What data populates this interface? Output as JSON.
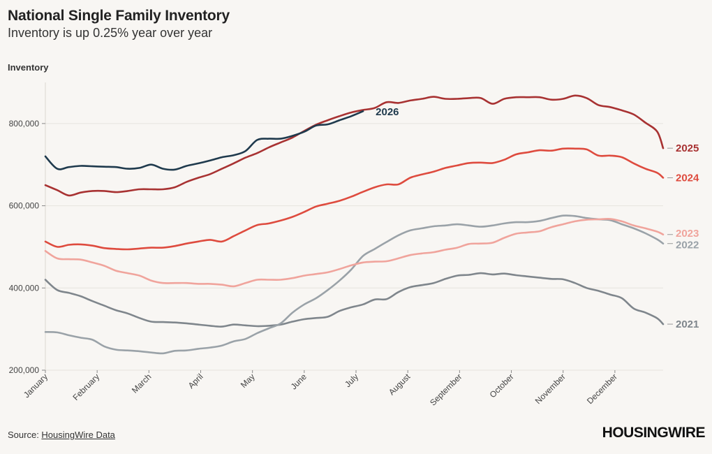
{
  "header": {
    "title": "National Single Family Inventory",
    "subtitle": "Inventory is up 0.25% year over year"
  },
  "footer": {
    "source_prefix": "Source: ",
    "source_link": "HousingWire Data",
    "logo": "HOUSINGWIRE"
  },
  "colors": {
    "background": "#f8f6f3",
    "grid": "#e6e3de",
    "2021": "#7f868c",
    "2022": "#9aa2a8",
    "2023": "#f0a49c",
    "2024": "#de4b3e",
    "2025": "#a83232",
    "2026": "#1f3a4d"
  },
  "chart_data": {
    "type": "line",
    "title": "National Single Family Inventory",
    "subtitle": "Inventory is up 0.25% year over year",
    "ylabel": "Inventory",
    "xlabel": "",
    "x_unit": "week of year",
    "xlim": [
      1,
      52
    ],
    "ylim": [
      200000,
      900000
    ],
    "yticks": [
      200000,
      400000,
      600000,
      800000
    ],
    "ytick_labels": [
      "200,000",
      "400,000",
      "600,000",
      "800,000"
    ],
    "xticks": [
      1,
      5.4,
      9.8,
      14.2,
      18.6,
      23,
      27.4,
      31.8,
      36.2,
      40.6,
      45,
      49.4
    ],
    "xtick_labels": [
      "January",
      "February",
      "March",
      "April",
      "May",
      "June",
      "July",
      "August",
      "September",
      "October",
      "November",
      "December"
    ],
    "grid": true,
    "legend": "end-of-line labels",
    "series": [
      {
        "name": "2021",
        "color_key": "2021",
        "values": [
          [
            1,
            420000
          ],
          [
            2,
            395000
          ],
          [
            3,
            388000
          ],
          [
            4,
            380000
          ],
          [
            5,
            368000
          ],
          [
            6,
            357000
          ],
          [
            7,
            346000
          ],
          [
            8,
            338000
          ],
          [
            9,
            327000
          ],
          [
            10,
            318000
          ],
          [
            11,
            317000
          ],
          [
            12,
            316000
          ],
          [
            13,
            314000
          ],
          [
            14,
            311000
          ],
          [
            15,
            308000
          ],
          [
            16,
            306000
          ],
          [
            17,
            311000
          ],
          [
            18,
            309000
          ],
          [
            19,
            307000
          ],
          [
            20,
            308000
          ],
          [
            21,
            311000
          ],
          [
            22,
            318000
          ],
          [
            23,
            324000
          ],
          [
            24,
            327000
          ],
          [
            25,
            330000
          ],
          [
            26,
            344000
          ],
          [
            27,
            353000
          ],
          [
            28,
            360000
          ],
          [
            29,
            372000
          ],
          [
            30,
            373000
          ],
          [
            31,
            390000
          ],
          [
            32,
            402000
          ],
          [
            33,
            407000
          ],
          [
            34,
            412000
          ],
          [
            35,
            422000
          ],
          [
            36,
            430000
          ],
          [
            37,
            432000
          ],
          [
            38,
            436000
          ],
          [
            39,
            433000
          ],
          [
            40,
            435000
          ],
          [
            41,
            431000
          ],
          [
            42,
            428000
          ],
          [
            43,
            425000
          ],
          [
            44,
            422000
          ],
          [
            45,
            421000
          ],
          [
            46,
            412000
          ],
          [
            47,
            400000
          ],
          [
            48,
            393000
          ],
          [
            49,
            384000
          ],
          [
            50,
            375000
          ],
          [
            51,
            350000
          ],
          [
            52,
            340000
          ],
          [
            53,
            326000
          ],
          [
            53.5,
            312000
          ]
        ]
      },
      {
        "name": "2022",
        "color_key": "2022",
        "values": [
          [
            1,
            293000
          ],
          [
            2,
            292000
          ],
          [
            3,
            285000
          ],
          [
            4,
            279000
          ],
          [
            5,
            274000
          ],
          [
            6,
            258000
          ],
          [
            7,
            250000
          ],
          [
            8,
            248000
          ],
          [
            9,
            246000
          ],
          [
            10,
            243000
          ],
          [
            11,
            241000
          ],
          [
            12,
            247000
          ],
          [
            13,
            248000
          ],
          [
            14,
            252000
          ],
          [
            15,
            255000
          ],
          [
            16,
            260000
          ],
          [
            17,
            270000
          ],
          [
            18,
            276000
          ],
          [
            19,
            290000
          ],
          [
            20,
            302000
          ],
          [
            21,
            314000
          ],
          [
            22,
            340000
          ],
          [
            23,
            360000
          ],
          [
            24,
            375000
          ],
          [
            25,
            395000
          ],
          [
            26,
            418000
          ],
          [
            27,
            445000
          ],
          [
            28,
            478000
          ],
          [
            29,
            495000
          ],
          [
            30,
            512000
          ],
          [
            31,
            528000
          ],
          [
            32,
            540000
          ],
          [
            33,
            545000
          ],
          [
            34,
            550000
          ],
          [
            35,
            552000
          ],
          [
            36,
            555000
          ],
          [
            37,
            552000
          ],
          [
            38,
            549000
          ],
          [
            39,
            552000
          ],
          [
            40,
            557000
          ],
          [
            41,
            560000
          ],
          [
            42,
            560000
          ],
          [
            43,
            563000
          ],
          [
            44,
            570000
          ],
          [
            45,
            576000
          ],
          [
            46,
            575000
          ],
          [
            47,
            570000
          ],
          [
            48,
            567000
          ],
          [
            49,
            565000
          ],
          [
            50,
            555000
          ],
          [
            51,
            545000
          ],
          [
            52,
            533000
          ],
          [
            53,
            518000
          ],
          [
            53.5,
            508000
          ]
        ]
      },
      {
        "name": "2023",
        "color_key": "2023",
        "values": [
          [
            1,
            490000
          ],
          [
            2,
            472000
          ],
          [
            3,
            470000
          ],
          [
            4,
            469000
          ],
          [
            5,
            462000
          ],
          [
            6,
            454000
          ],
          [
            7,
            442000
          ],
          [
            8,
            436000
          ],
          [
            9,
            430000
          ],
          [
            10,
            418000
          ],
          [
            11,
            412000
          ],
          [
            12,
            412000
          ],
          [
            13,
            412000
          ],
          [
            14,
            410000
          ],
          [
            15,
            410000
          ],
          [
            16,
            408000
          ],
          [
            17,
            404000
          ],
          [
            18,
            412000
          ],
          [
            19,
            420000
          ],
          [
            20,
            420000
          ],
          [
            21,
            420000
          ],
          [
            22,
            424000
          ],
          [
            23,
            430000
          ],
          [
            24,
            434000
          ],
          [
            25,
            438000
          ],
          [
            26,
            446000
          ],
          [
            27,
            455000
          ],
          [
            28,
            462000
          ],
          [
            29,
            464000
          ],
          [
            30,
            465000
          ],
          [
            31,
            472000
          ],
          [
            32,
            480000
          ],
          [
            33,
            484000
          ],
          [
            34,
            487000
          ],
          [
            35,
            493000
          ],
          [
            36,
            498000
          ],
          [
            37,
            507000
          ],
          [
            38,
            508000
          ],
          [
            39,
            510000
          ],
          [
            40,
            522000
          ],
          [
            41,
            532000
          ],
          [
            42,
            535000
          ],
          [
            43,
            538000
          ],
          [
            44,
            548000
          ],
          [
            45,
            555000
          ],
          [
            46,
            562000
          ],
          [
            47,
            566000
          ],
          [
            48,
            567000
          ],
          [
            49,
            568000
          ],
          [
            50,
            562000
          ],
          [
            51,
            552000
          ],
          [
            52,
            545000
          ],
          [
            53,
            537000
          ],
          [
            53.5,
            530000
          ]
        ]
      },
      {
        "name": "2024",
        "color_key": "2024",
        "values": [
          [
            1,
            513000
          ],
          [
            2,
            500000
          ],
          [
            3,
            505000
          ],
          [
            4,
            506000
          ],
          [
            5,
            503000
          ],
          [
            6,
            497000
          ],
          [
            7,
            495000
          ],
          [
            8,
            494000
          ],
          [
            9,
            496000
          ],
          [
            10,
            498000
          ],
          [
            11,
            498000
          ],
          [
            12,
            502000
          ],
          [
            13,
            508000
          ],
          [
            14,
            513000
          ],
          [
            15,
            517000
          ],
          [
            16,
            513000
          ],
          [
            17,
            526000
          ],
          [
            18,
            540000
          ],
          [
            19,
            553000
          ],
          [
            20,
            557000
          ],
          [
            21,
            564000
          ],
          [
            22,
            573000
          ],
          [
            23,
            585000
          ],
          [
            24,
            598000
          ],
          [
            25,
            605000
          ],
          [
            26,
            612000
          ],
          [
            27,
            622000
          ],
          [
            28,
            634000
          ],
          [
            29,
            645000
          ],
          [
            30,
            652000
          ],
          [
            31,
            652000
          ],
          [
            32,
            668000
          ],
          [
            33,
            676000
          ],
          [
            34,
            683000
          ],
          [
            35,
            692000
          ],
          [
            36,
            698000
          ],
          [
            37,
            704000
          ],
          [
            38,
            705000
          ],
          [
            39,
            704000
          ],
          [
            40,
            712000
          ],
          [
            41,
            725000
          ],
          [
            42,
            730000
          ],
          [
            43,
            735000
          ],
          [
            44,
            734000
          ],
          [
            45,
            739000
          ],
          [
            46,
            739000
          ],
          [
            47,
            737000
          ],
          [
            48,
            722000
          ],
          [
            49,
            722000
          ],
          [
            50,
            718000
          ],
          [
            51,
            703000
          ],
          [
            52,
            690000
          ],
          [
            53,
            680000
          ],
          [
            53.5,
            668000
          ]
        ]
      },
      {
        "name": "2025",
        "color_key": "2025",
        "values": [
          [
            1,
            650000
          ],
          [
            2,
            638000
          ],
          [
            3,
            625000
          ],
          [
            4,
            632000
          ],
          [
            5,
            636000
          ],
          [
            6,
            636000
          ],
          [
            7,
            633000
          ],
          [
            8,
            636000
          ],
          [
            9,
            640000
          ],
          [
            10,
            640000
          ],
          [
            11,
            640000
          ],
          [
            12,
            645000
          ],
          [
            13,
            658000
          ],
          [
            14,
            668000
          ],
          [
            15,
            677000
          ],
          [
            16,
            690000
          ],
          [
            17,
            703000
          ],
          [
            18,
            717000
          ],
          [
            19,
            728000
          ],
          [
            20,
            742000
          ],
          [
            21,
            754000
          ],
          [
            22,
            766000
          ],
          [
            23,
            782000
          ],
          [
            24,
            797000
          ],
          [
            25,
            808000
          ],
          [
            26,
            818000
          ],
          [
            27,
            827000
          ],
          [
            28,
            833000
          ],
          [
            29,
            838000
          ],
          [
            30,
            852000
          ],
          [
            31,
            850000
          ],
          [
            32,
            856000
          ],
          [
            33,
            860000
          ],
          [
            34,
            865000
          ],
          [
            35,
            860000
          ],
          [
            36,
            860000
          ],
          [
            37,
            862000
          ],
          [
            38,
            862000
          ],
          [
            39,
            848000
          ],
          [
            40,
            860000
          ],
          [
            41,
            864000
          ],
          [
            42,
            864000
          ],
          [
            43,
            864000
          ],
          [
            44,
            858000
          ],
          [
            45,
            860000
          ],
          [
            46,
            868000
          ],
          [
            47,
            862000
          ],
          [
            48,
            845000
          ],
          [
            49,
            840000
          ],
          [
            50,
            832000
          ],
          [
            51,
            822000
          ],
          [
            52,
            802000
          ],
          [
            53,
            780000
          ],
          [
            53.5,
            740000
          ]
        ]
      },
      {
        "name": "2026",
        "color_key": "2026",
        "values": [
          [
            1,
            720000
          ],
          [
            2,
            690000
          ],
          [
            3,
            694000
          ],
          [
            4,
            697000
          ],
          [
            5,
            696000
          ],
          [
            6,
            695000
          ],
          [
            7,
            694000
          ],
          [
            8,
            690000
          ],
          [
            9,
            692000
          ],
          [
            10,
            700000
          ],
          [
            11,
            690000
          ],
          [
            12,
            688000
          ],
          [
            13,
            697000
          ],
          [
            14,
            703000
          ],
          [
            15,
            710000
          ],
          [
            16,
            718000
          ],
          [
            17,
            723000
          ],
          [
            18,
            733000
          ],
          [
            19,
            760000
          ],
          [
            20,
            763000
          ],
          [
            21,
            763000
          ],
          [
            22,
            770000
          ],
          [
            23,
            780000
          ],
          [
            24,
            795000
          ],
          [
            25,
            798000
          ],
          [
            26,
            808000
          ],
          [
            27,
            818000
          ],
          [
            28,
            830000
          ]
        ]
      }
    ]
  }
}
